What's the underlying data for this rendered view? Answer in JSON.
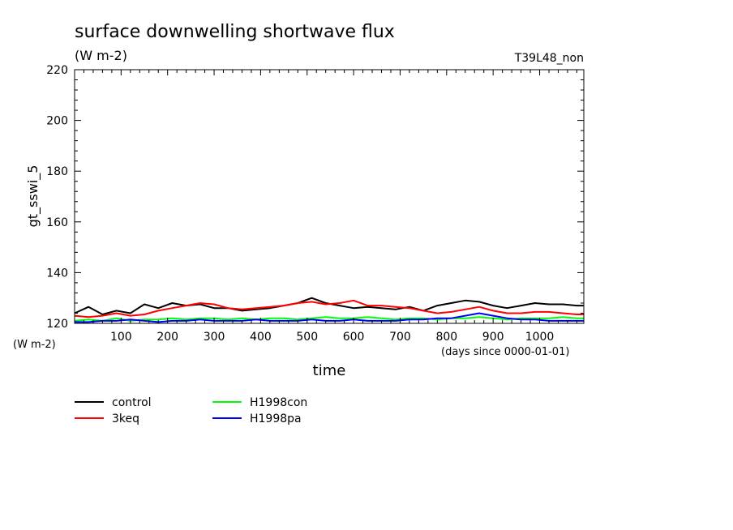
{
  "chart_data": {
    "type": "line",
    "title": "surface downwelling shortwave flux",
    "subtitle": "(W m-2)",
    "run_label": "T39L48_non",
    "ylabel": "gt_sswi_5",
    "y_unit": "(W m-2)",
    "xlabel": "time",
    "x_unit": "(days since 0000-01-01)",
    "xlim": [
      0,
      1095
    ],
    "ylim": [
      120,
      220
    ],
    "xticks": [
      100,
      200,
      300,
      400,
      500,
      600,
      700,
      800,
      900,
      1000
    ],
    "yticks": [
      120,
      140,
      160,
      180,
      200,
      220
    ],
    "grid": false,
    "legend_position": "bottom-left",
    "series": [
      {
        "name": "control",
        "color": "#000000",
        "values": [
          [
            0,
            124
          ],
          [
            30,
            126.5
          ],
          [
            60,
            123.5
          ],
          [
            90,
            125
          ],
          [
            120,
            124
          ],
          [
            150,
            127.5
          ],
          [
            180,
            126
          ],
          [
            210,
            128
          ],
          [
            240,
            127
          ],
          [
            270,
            127.5
          ],
          [
            300,
            126
          ],
          [
            330,
            126
          ],
          [
            360,
            125
          ],
          [
            390,
            125.5
          ],
          [
            420,
            126
          ],
          [
            450,
            127
          ],
          [
            480,
            128
          ],
          [
            510,
            130
          ],
          [
            540,
            128
          ],
          [
            570,
            127
          ],
          [
            600,
            126
          ],
          [
            630,
            126.5
          ],
          [
            660,
            126
          ],
          [
            690,
            125.5
          ],
          [
            720,
            126.5
          ],
          [
            750,
            125
          ],
          [
            780,
            127
          ],
          [
            810,
            128
          ],
          [
            840,
            129
          ],
          [
            870,
            128.5
          ],
          [
            900,
            127
          ],
          [
            930,
            126
          ],
          [
            960,
            127
          ],
          [
            990,
            128
          ],
          [
            1020,
            127.5
          ],
          [
            1050,
            127.5
          ],
          [
            1080,
            127
          ],
          [
            1095,
            127
          ]
        ]
      },
      {
        "name": "3keq",
        "color": "#ff0000",
        "values": [
          [
            0,
            123
          ],
          [
            30,
            122.5
          ],
          [
            60,
            123
          ],
          [
            90,
            124
          ],
          [
            120,
            123
          ],
          [
            150,
            123.5
          ],
          [
            180,
            125
          ],
          [
            210,
            126
          ],
          [
            240,
            127
          ],
          [
            270,
            128
          ],
          [
            300,
            127.5
          ],
          [
            330,
            126
          ],
          [
            360,
            125.5
          ],
          [
            390,
            126
          ],
          [
            420,
            126.5
          ],
          [
            450,
            127
          ],
          [
            480,
            128
          ],
          [
            510,
            128.5
          ],
          [
            540,
            127.5
          ],
          [
            570,
            128
          ],
          [
            600,
            129
          ],
          [
            630,
            127
          ],
          [
            660,
            127
          ],
          [
            690,
            126.5
          ],
          [
            720,
            126
          ],
          [
            750,
            125
          ],
          [
            780,
            124
          ],
          [
            810,
            124.5
          ],
          [
            840,
            125.5
          ],
          [
            870,
            126.5
          ],
          [
            900,
            125
          ],
          [
            930,
            124
          ],
          [
            960,
            124
          ],
          [
            990,
            124.5
          ],
          [
            1020,
            124.5
          ],
          [
            1050,
            124
          ],
          [
            1080,
            123.5
          ],
          [
            1095,
            123.5
          ]
        ]
      },
      {
        "name": "H1998con",
        "color": "#00ff00",
        "values": [
          [
            0,
            121
          ],
          [
            30,
            121.5
          ],
          [
            60,
            121
          ],
          [
            90,
            122
          ],
          [
            120,
            121
          ],
          [
            150,
            121.5
          ],
          [
            180,
            121.5
          ],
          [
            210,
            122
          ],
          [
            240,
            121.5
          ],
          [
            270,
            122
          ],
          [
            300,
            122
          ],
          [
            330,
            121.5
          ],
          [
            360,
            122
          ],
          [
            390,
            121.5
          ],
          [
            420,
            122
          ],
          [
            450,
            122
          ],
          [
            480,
            121.5
          ],
          [
            510,
            122
          ],
          [
            540,
            122.5
          ],
          [
            570,
            122
          ],
          [
            600,
            122
          ],
          [
            630,
            122.5
          ],
          [
            660,
            122
          ],
          [
            690,
            121.5
          ],
          [
            720,
            122
          ],
          [
            750,
            122
          ],
          [
            780,
            121.5
          ],
          [
            810,
            122
          ],
          [
            840,
            122
          ],
          [
            870,
            122.5
          ],
          [
            900,
            122
          ],
          [
            930,
            121.5
          ],
          [
            960,
            122
          ],
          [
            990,
            122
          ],
          [
            1020,
            122
          ],
          [
            1050,
            122.5
          ],
          [
            1080,
            122
          ],
          [
            1095,
            122
          ]
        ]
      },
      {
        "name": "H1998pa",
        "color": "#0000ff",
        "values": [
          [
            0,
            120.5
          ],
          [
            30,
            120.5
          ],
          [
            60,
            121
          ],
          [
            90,
            121
          ],
          [
            120,
            121.5
          ],
          [
            150,
            121
          ],
          [
            180,
            120.5
          ],
          [
            210,
            121
          ],
          [
            240,
            121
          ],
          [
            270,
            121.5
          ],
          [
            300,
            121
          ],
          [
            330,
            121
          ],
          [
            360,
            121
          ],
          [
            390,
            121.5
          ],
          [
            420,
            121
          ],
          [
            450,
            121
          ],
          [
            480,
            121
          ],
          [
            510,
            121.5
          ],
          [
            540,
            121
          ],
          [
            570,
            121
          ],
          [
            600,
            121.5
          ],
          [
            630,
            121
          ],
          [
            660,
            121
          ],
          [
            690,
            121
          ],
          [
            720,
            121.5
          ],
          [
            750,
            121.5
          ],
          [
            780,
            122
          ],
          [
            810,
            122
          ],
          [
            840,
            123
          ],
          [
            870,
            124
          ],
          [
            900,
            123
          ],
          [
            930,
            122
          ],
          [
            960,
            121.5
          ],
          [
            990,
            121.5
          ],
          [
            1020,
            121
          ],
          [
            1050,
            121
          ],
          [
            1080,
            121
          ],
          [
            1095,
            121
          ]
        ]
      }
    ]
  }
}
